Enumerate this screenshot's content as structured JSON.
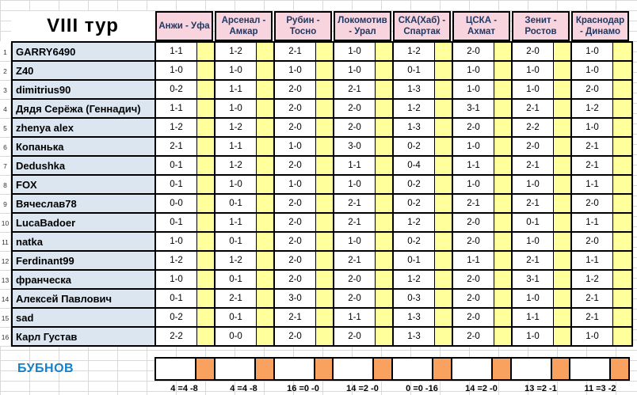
{
  "title": "VIII тур",
  "bubnov_label": "БУБНОВ",
  "colors": {
    "header-pink": "#F7D4DE",
    "header-text": "#1F3864",
    "yellow": "#FFFF9C",
    "name-bg": "#DCE6F1",
    "orange": "#F9A15E",
    "bubnov-blue": "#1581C8",
    "grid": "#D9D9D9"
  },
  "matches": [
    {
      "label": "Анжи - Уфа",
      "stats": "4 =4 -8"
    },
    {
      "label": "Арсенал - Амкар",
      "stats": "4 =4 -8"
    },
    {
      "label": "Рубин - Тосно",
      "stats": "16 =0 -0"
    },
    {
      "label": "Локомотив - Урал",
      "stats": "14 =2 -0"
    },
    {
      "label": "СКА(Хаб) - Спартак",
      "stats": "0 =0 -16"
    },
    {
      "label": "ЦСКА - Ахмат",
      "stats": "14 =2 -0"
    },
    {
      "label": "Зенит - Ростов",
      "stats": "13 =2 -1"
    },
    {
      "label": "Краснодар - Динамо",
      "stats": "11 =3 -2"
    }
  ],
  "players": [
    {
      "num": 1,
      "name": "GARRY6490",
      "predictions": [
        "1-1",
        "1-2",
        "2-1",
        "1-0",
        "1-2",
        "2-0",
        "2-0",
        "1-0"
      ]
    },
    {
      "num": 2,
      "name": "Z40",
      "predictions": [
        "1-0",
        "1-0",
        "1-0",
        "1-0",
        "0-1",
        "1-0",
        "1-0",
        "1-0"
      ]
    },
    {
      "num": 3,
      "name": "dimitrius90",
      "predictions": [
        "0-2",
        "1-1",
        "2-0",
        "2-1",
        "1-3",
        "1-0",
        "1-0",
        "2-0"
      ]
    },
    {
      "num": 4,
      "name": "Дядя Серёжа (Геннадич)",
      "predictions": [
        "1-1",
        "1-0",
        "2-0",
        "2-0",
        "1-2",
        "3-1",
        "2-1",
        "1-2"
      ]
    },
    {
      "num": 5,
      "name": "zhenya alex",
      "predictions": [
        "1-2",
        "1-2",
        "2-0",
        "2-0",
        "1-3",
        "2-0",
        "2-2",
        "1-0"
      ]
    },
    {
      "num": 6,
      "name": "Копанька",
      "predictions": [
        "2-1",
        "1-1",
        "1-0",
        "3-0",
        "0-2",
        "1-0",
        "2-0",
        "2-1"
      ]
    },
    {
      "num": 7,
      "name": "Dedushka",
      "predictions": [
        "0-1",
        "1-2",
        "2-0",
        "1-1",
        "0-4",
        "1-1",
        "2-1",
        "2-1"
      ]
    },
    {
      "num": 8,
      "name": "FOX",
      "predictions": [
        "0-1",
        "1-0",
        "1-0",
        "1-0",
        "0-2",
        "1-0",
        "1-0",
        "1-1"
      ]
    },
    {
      "num": 9,
      "name": "Вячеслав78",
      "predictions": [
        "0-0",
        "0-1",
        "2-0",
        "2-1",
        "0-2",
        "2-1",
        "2-1",
        "2-0"
      ]
    },
    {
      "num": 10,
      "name": "LucaBadoer",
      "predictions": [
        "0-1",
        "1-1",
        "2-0",
        "2-1",
        "1-2",
        "2-0",
        "0-1",
        "1-1"
      ]
    },
    {
      "num": 11,
      "name": "natka",
      "predictions": [
        "1-0",
        "0-1",
        "2-0",
        "1-0",
        "0-2",
        "2-0",
        "1-0",
        "2-0"
      ]
    },
    {
      "num": 12,
      "name": "Ferdinant99",
      "predictions": [
        "1-2",
        "1-2",
        "2-0",
        "2-1",
        "0-1",
        "1-1",
        "2-1",
        "1-1"
      ]
    },
    {
      "num": 13,
      "name": "франческа",
      "predictions": [
        "1-0",
        "0-1",
        "2-0",
        "2-0",
        "1-2",
        "2-0",
        "3-1",
        "1-2"
      ]
    },
    {
      "num": 14,
      "name": "Алексей Павлович",
      "predictions": [
        "0-1",
        "2-1",
        "3-0",
        "2-0",
        "0-3",
        "2-0",
        "1-0",
        "2-1"
      ]
    },
    {
      "num": 15,
      "name": "sad",
      "predictions": [
        "0-2",
        "0-1",
        "2-1",
        "1-1",
        "1-3",
        "2-0",
        "1-1",
        "2-1"
      ]
    },
    {
      "num": 16,
      "name": "Карл Густав",
      "predictions": [
        "2-2",
        "0-0",
        "2-0",
        "2-0",
        "1-3",
        "2-0",
        "1-0",
        "1-0"
      ]
    }
  ]
}
